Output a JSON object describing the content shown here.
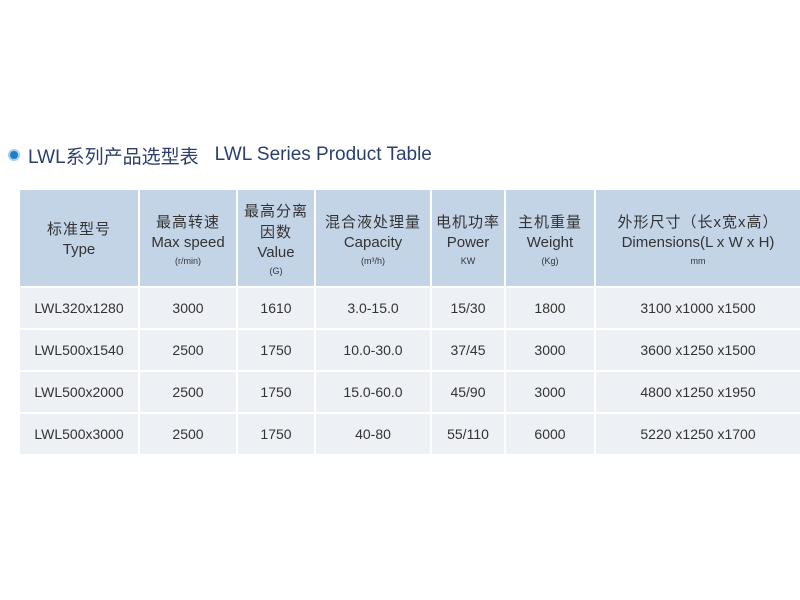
{
  "header": {
    "title_zh": "LWL系列产品选型表",
    "title_en": "LWL Series Product Table"
  },
  "table": {
    "columns": [
      {
        "zh": "标准型号",
        "en": "Type"
      },
      {
        "zh": "最高转速",
        "en": "Max speed",
        "unit": "(r/min)"
      },
      {
        "zh": "最高分离因数",
        "en": "Value",
        "unit": "(G)"
      },
      {
        "zh": "混合液处理量",
        "en": "Capacity",
        "unit": "(m³/h)"
      },
      {
        "zh": "电机功率",
        "en": "Power",
        "unit": "KW"
      },
      {
        "zh": "主机重量",
        "en": "Weight",
        "unit": "(Kg)"
      },
      {
        "zh": "外形尺寸（长x宽x高）",
        "en": "Dimensions(L x W x H)",
        "unit": "mm"
      }
    ],
    "rows": [
      [
        "LWL320x1280",
        "3000",
        "1610",
        "3.0-15.0",
        "15/30",
        "1800",
        "3100 x1000 x1500"
      ],
      [
        "LWL500x1540",
        "2500",
        "1750",
        "10.0-30.0",
        "37/45",
        "3000",
        "3600 x1250 x1500"
      ],
      [
        "LWL500x2000",
        "2500",
        "1750",
        "15.0-60.0",
        "45/90",
        "3000",
        "4800 x1250 x1950"
      ],
      [
        "LWL500x3000",
        "2500",
        "1750",
        "40-80",
        "55/110",
        "6000",
        "5220 x1250 x1700"
      ]
    ]
  }
}
